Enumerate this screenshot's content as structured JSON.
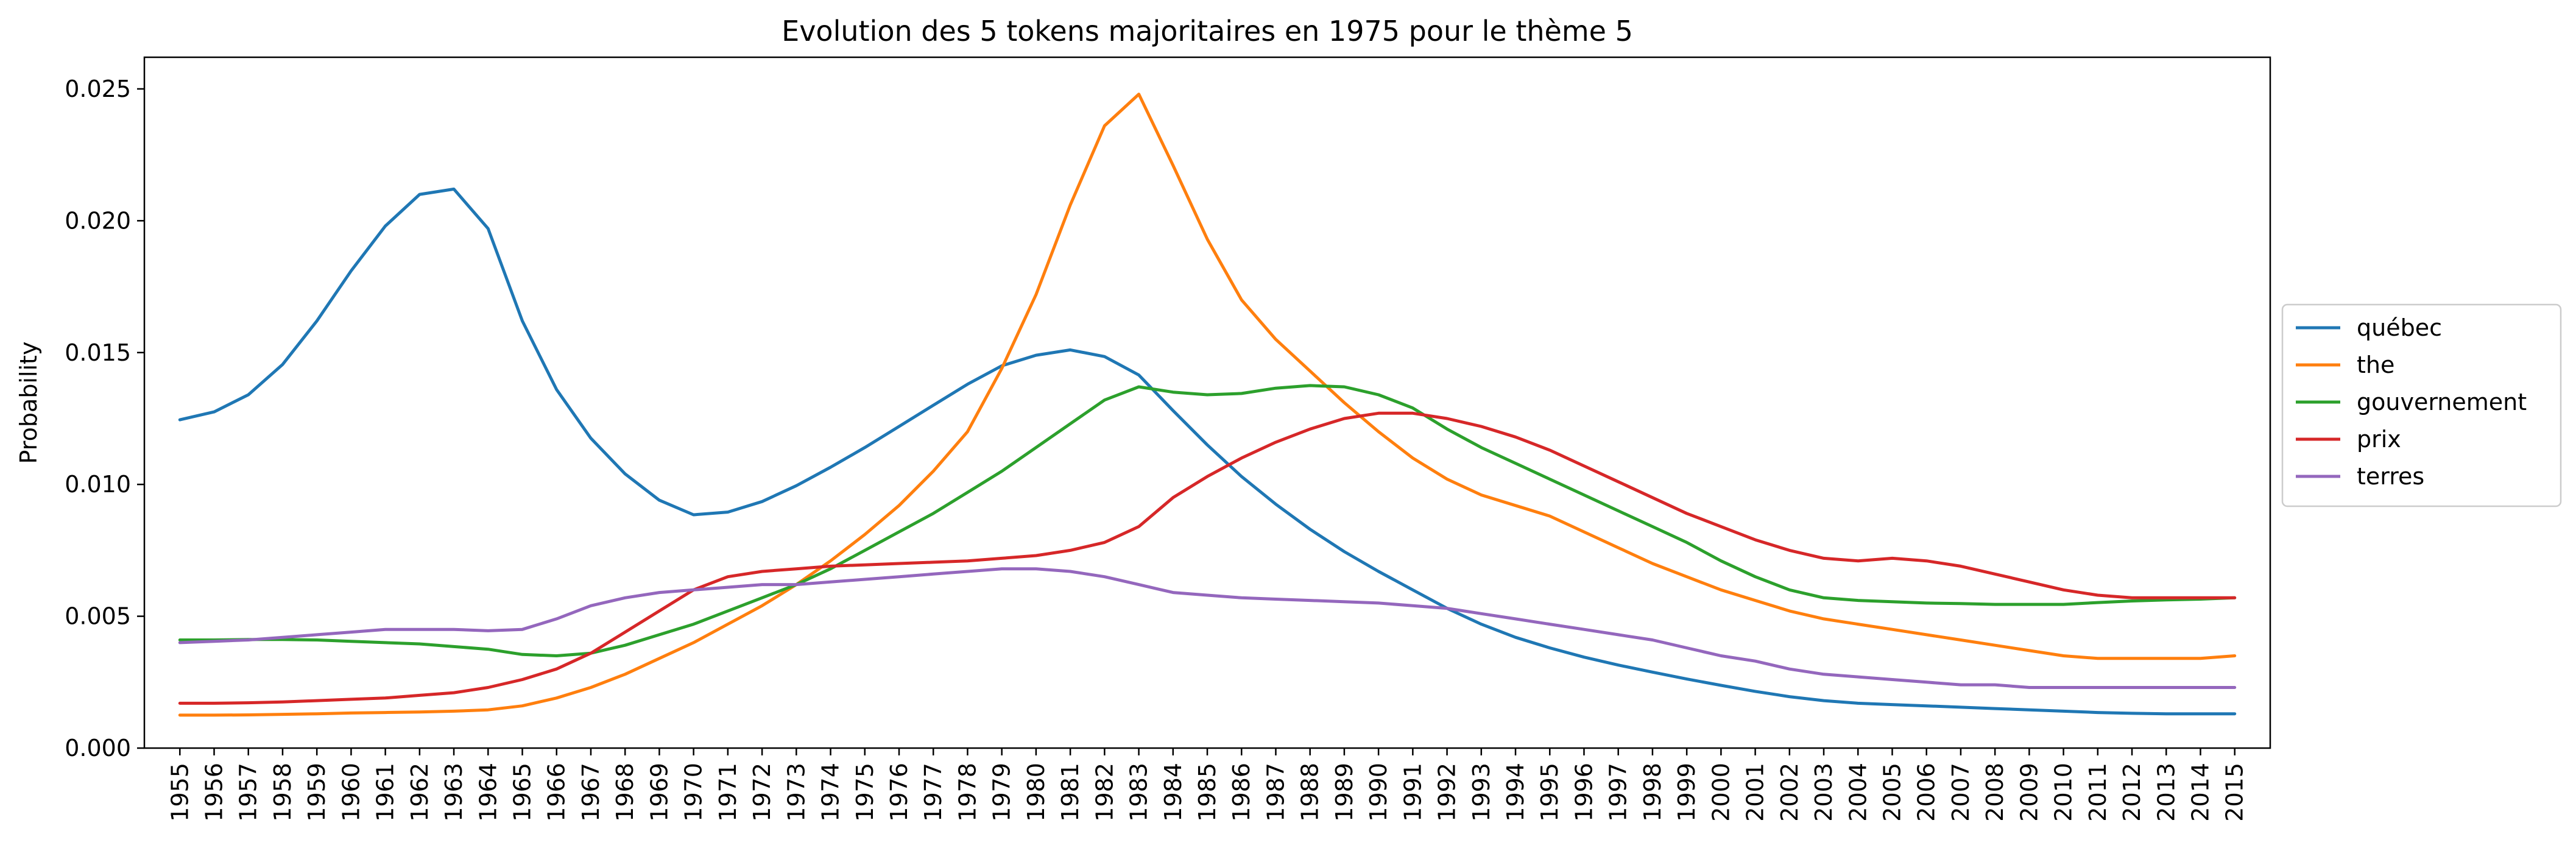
{
  "chart_data": {
    "type": "line",
    "title": "Evolution des 5 tokens majoritaires en 1975 pour le thème 5",
    "xlabel": "",
    "ylabel": "Probability",
    "ylim": [
      0,
      0.0262
    ],
    "yticks": [
      "0.000",
      "0.005",
      "0.010",
      "0.015",
      "0.020",
      "0.025"
    ],
    "grid": false,
    "legend_position": "center-right outside",
    "x": [
      1955,
      1956,
      1957,
      1958,
      1959,
      1960,
      1961,
      1962,
      1963,
      1964,
      1965,
      1966,
      1967,
      1968,
      1969,
      1970,
      1971,
      1972,
      1973,
      1974,
      1975,
      1976,
      1977,
      1978,
      1979,
      1980,
      1981,
      1982,
      1983,
      1984,
      1985,
      1986,
      1987,
      1988,
      1989,
      1990,
      1991,
      1992,
      1993,
      1994,
      1995,
      1996,
      1997,
      1998,
      1999,
      2000,
      2001,
      2002,
      2003,
      2004,
      2005,
      2006,
      2007,
      2008,
      2009,
      2010,
      2011,
      2012,
      2013,
      2014,
      2015
    ],
    "series": [
      {
        "name": "québec",
        "color": "#1f77b4",
        "values": [
          0.01245,
          0.01275,
          0.0134,
          0.01455,
          0.0162,
          0.0181,
          0.0198,
          0.021,
          0.0212,
          0.0197,
          0.0162,
          0.0136,
          0.01175,
          0.0104,
          0.0094,
          0.00885,
          0.00895,
          0.00935,
          0.00995,
          0.01065,
          0.0114,
          0.0122,
          0.013,
          0.0138,
          0.0145,
          0.0149,
          0.0151,
          0.01485,
          0.01415,
          0.0128,
          0.0115,
          0.0103,
          0.00925,
          0.0083,
          0.00745,
          0.0067,
          0.006,
          0.0053,
          0.0047,
          0.0042,
          0.0038,
          0.00345,
          0.00315,
          0.00288,
          0.00262,
          0.00238,
          0.00215,
          0.00195,
          0.0018,
          0.0017,
          0.00165,
          0.0016,
          0.00155,
          0.0015,
          0.00145,
          0.0014,
          0.00135,
          0.00132,
          0.0013,
          0.0013,
          0.0013
        ]
      },
      {
        "name": "the",
        "color": "#ff7f0e",
        "values": [
          0.00125,
          0.00125,
          0.00126,
          0.00128,
          0.0013,
          0.00133,
          0.00135,
          0.00137,
          0.0014,
          0.00145,
          0.0016,
          0.0019,
          0.0023,
          0.0028,
          0.0034,
          0.004,
          0.0047,
          0.0054,
          0.0062,
          0.0071,
          0.0081,
          0.0092,
          0.0105,
          0.012,
          0.0144,
          0.0172,
          0.0206,
          0.0236,
          0.0248,
          0.0221,
          0.0193,
          0.017,
          0.0155,
          0.0143,
          0.0131,
          0.012,
          0.011,
          0.0102,
          0.0096,
          0.0092,
          0.0088,
          0.0082,
          0.0076,
          0.007,
          0.0065,
          0.006,
          0.0056,
          0.0052,
          0.0049,
          0.0047,
          0.0045,
          0.0043,
          0.0041,
          0.0039,
          0.0037,
          0.0035,
          0.0034,
          0.0034,
          0.0034,
          0.0034,
          0.0035
        ]
      },
      {
        "name": "gouvernement",
        "color": "#2ca02c",
        "values": [
          0.0041,
          0.0041,
          0.00412,
          0.00412,
          0.0041,
          0.00405,
          0.004,
          0.00395,
          0.00385,
          0.00375,
          0.00355,
          0.0035,
          0.0036,
          0.0039,
          0.0043,
          0.0047,
          0.0052,
          0.0057,
          0.0062,
          0.0068,
          0.0075,
          0.0082,
          0.0089,
          0.0097,
          0.0105,
          0.0114,
          0.0123,
          0.0132,
          0.0137,
          0.0135,
          0.0134,
          0.01345,
          0.01365,
          0.01375,
          0.0137,
          0.0134,
          0.0129,
          0.0121,
          0.0114,
          0.0108,
          0.0102,
          0.0096,
          0.009,
          0.0084,
          0.0078,
          0.0071,
          0.0065,
          0.006,
          0.0057,
          0.0056,
          0.00555,
          0.0055,
          0.00548,
          0.00545,
          0.00545,
          0.00545,
          0.00552,
          0.00558,
          0.00562,
          0.00565,
          0.0057
        ]
      },
      {
        "name": "prix",
        "color": "#d62728",
        "values": [
          0.0017,
          0.0017,
          0.00172,
          0.00175,
          0.0018,
          0.00185,
          0.0019,
          0.002,
          0.0021,
          0.0023,
          0.0026,
          0.003,
          0.0036,
          0.0044,
          0.0052,
          0.006,
          0.0065,
          0.0067,
          0.0068,
          0.0069,
          0.00695,
          0.007,
          0.00705,
          0.0071,
          0.0072,
          0.0073,
          0.0075,
          0.0078,
          0.0084,
          0.0095,
          0.0103,
          0.011,
          0.0116,
          0.0121,
          0.0125,
          0.0127,
          0.0127,
          0.0125,
          0.0122,
          0.0118,
          0.0113,
          0.0107,
          0.0101,
          0.0095,
          0.0089,
          0.0084,
          0.0079,
          0.0075,
          0.0072,
          0.0071,
          0.0072,
          0.0071,
          0.0069,
          0.0066,
          0.0063,
          0.006,
          0.0058,
          0.0057,
          0.0057,
          0.0057,
          0.0057
        ]
      },
      {
        "name": "terres",
        "color": "#9467bd",
        "values": [
          0.004,
          0.00405,
          0.0041,
          0.0042,
          0.0043,
          0.0044,
          0.0045,
          0.0045,
          0.0045,
          0.00445,
          0.0045,
          0.0049,
          0.0054,
          0.0057,
          0.0059,
          0.006,
          0.0061,
          0.0062,
          0.0062,
          0.0063,
          0.0064,
          0.0065,
          0.0066,
          0.0067,
          0.0068,
          0.0068,
          0.0067,
          0.0065,
          0.0062,
          0.0059,
          0.0058,
          0.0057,
          0.00565,
          0.0056,
          0.00555,
          0.0055,
          0.0054,
          0.0053,
          0.0051,
          0.0049,
          0.0047,
          0.0045,
          0.0043,
          0.0041,
          0.0038,
          0.0035,
          0.0033,
          0.003,
          0.0028,
          0.0027,
          0.0026,
          0.0025,
          0.0024,
          0.0024,
          0.0023,
          0.0023,
          0.0023,
          0.0023,
          0.0023,
          0.0023,
          0.0023
        ]
      }
    ]
  }
}
